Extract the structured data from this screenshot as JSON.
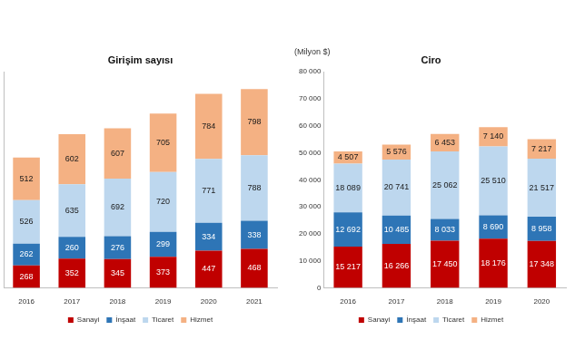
{
  "chart_data": [
    {
      "type": "bar",
      "title": "Girişim sayısı",
      "stacked": true,
      "data_labels": true,
      "legend": "bottom",
      "grid": false,
      "tick_labels": "x",
      "categories": [
        "2016",
        "2017",
        "2018",
        "2019",
        "2020",
        "2021"
      ],
      "ylim": [
        0,
        2600
      ],
      "series": [
        {
          "name": "Sanayi",
          "color": "#c00000",
          "values": [
            268,
            352,
            345,
            373,
            447,
            468
          ]
        },
        {
          "name": "İnşaat",
          "color": "#2e75b6",
          "values": [
            262,
            260,
            276,
            299,
            334,
            338
          ]
        },
        {
          "name": "Ticaret",
          "color": "#bdd7ee",
          "values": [
            526,
            635,
            692,
            720,
            771,
            788
          ]
        },
        {
          "name": "Hizmet",
          "color": "#f4b183",
          "values": [
            512,
            602,
            607,
            705,
            784,
            798
          ]
        }
      ]
    },
    {
      "type": "bar",
      "title": "Ciro",
      "ylabel": "(Milyon $)",
      "stacked": true,
      "data_labels": true,
      "legend": "bottom",
      "grid": false,
      "categories": [
        "2016",
        "2017",
        "2018",
        "2019",
        "2020"
      ],
      "ylim": [
        0,
        80000
      ],
      "yticks": [
        0,
        {
          "value": 10000,
          "label": "10 000"
        },
        {
          "value": 20000,
          "label": "20 000"
        },
        {
          "value": 30000,
          "label": "30 000"
        },
        {
          "value": 40000,
          "label": "40 000"
        },
        {
          "value": 50000,
          "label": "50 000"
        },
        {
          "value": 60000,
          "label": "60 000"
        },
        {
          "value": 70000,
          "label": "70 000"
        },
        {
          "value": 80000,
          "label": "80 000"
        }
      ],
      "series": [
        {
          "name": "Sanayi",
          "color": "#c00000",
          "values": [
            15217,
            16266,
            17450,
            18176,
            17348
          ],
          "value_labels": [
            "15 217",
            "16 266",
            "17 450",
            "18 176",
            "17 348"
          ]
        },
        {
          "name": "İnşaat",
          "color": "#2e75b6",
          "values": [
            12692,
            10485,
            8033,
            8690,
            8958
          ],
          "value_labels": [
            "12 692",
            "10 485",
            "8 033",
            "8 690",
            "8 958"
          ]
        },
        {
          "name": "Ticaret",
          "color": "#bdd7ee",
          "values": [
            18089,
            20741,
            25062,
            25510,
            21517
          ],
          "value_labels": [
            "18 089",
            "20 741",
            "25 062",
            "25 510",
            "21 517"
          ]
        },
        {
          "name": "Hizmet",
          "color": "#f4b183",
          "values": [
            4507,
            5576,
            6453,
            7140,
            7217
          ],
          "value_labels": [
            "4 507",
            "5 576",
            "6 453",
            "7 140",
            "7 217"
          ]
        }
      ]
    }
  ]
}
